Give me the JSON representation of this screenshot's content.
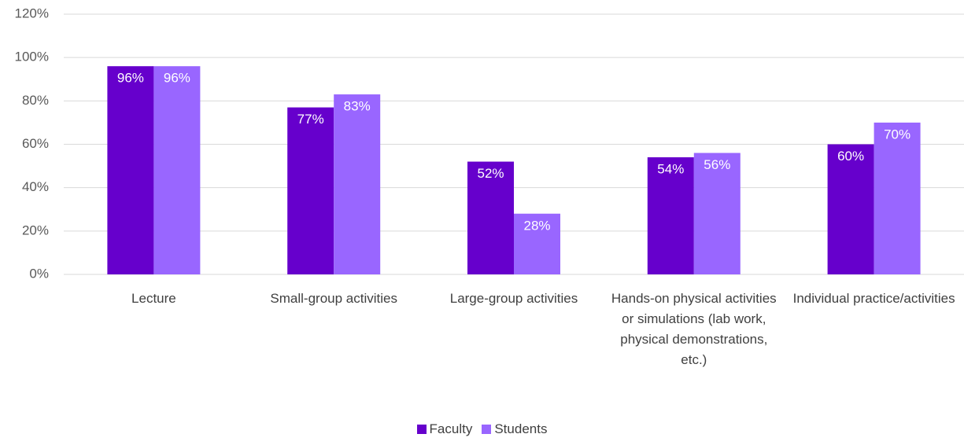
{
  "chart_data": {
    "type": "bar",
    "categories": [
      "Lecture",
      "Small-group activities",
      "Large-group activities",
      "Hands-on physical activities or simulations (lab work, physical demonstrations, etc.)",
      "Individual practice/activities"
    ],
    "series": [
      {
        "name": "Faculty",
        "color": "#6600cc",
        "values": [
          96,
          77,
          52,
          54,
          60
        ],
        "value_labels": [
          "96%",
          "77%",
          "52%",
          "54%",
          "60%"
        ]
      },
      {
        "name": "Students",
        "color": "#9966ff",
        "values": [
          96,
          83,
          28,
          56,
          70
        ],
        "value_labels": [
          "96%",
          "83%",
          "28%",
          "56%",
          "70%"
        ]
      }
    ],
    "ylim": [
      0,
      120
    ],
    "yticks": [
      {
        "value": 0,
        "label": "0%"
      },
      {
        "value": 20,
        "label": "20%"
      },
      {
        "value": 40,
        "label": "40%"
      },
      {
        "value": 60,
        "label": "60%"
      },
      {
        "value": 80,
        "label": "80%"
      },
      {
        "value": 100,
        "label": "100%"
      },
      {
        "value": 120,
        "label": "120%"
      }
    ],
    "grid": true,
    "legend": "bottom"
  }
}
